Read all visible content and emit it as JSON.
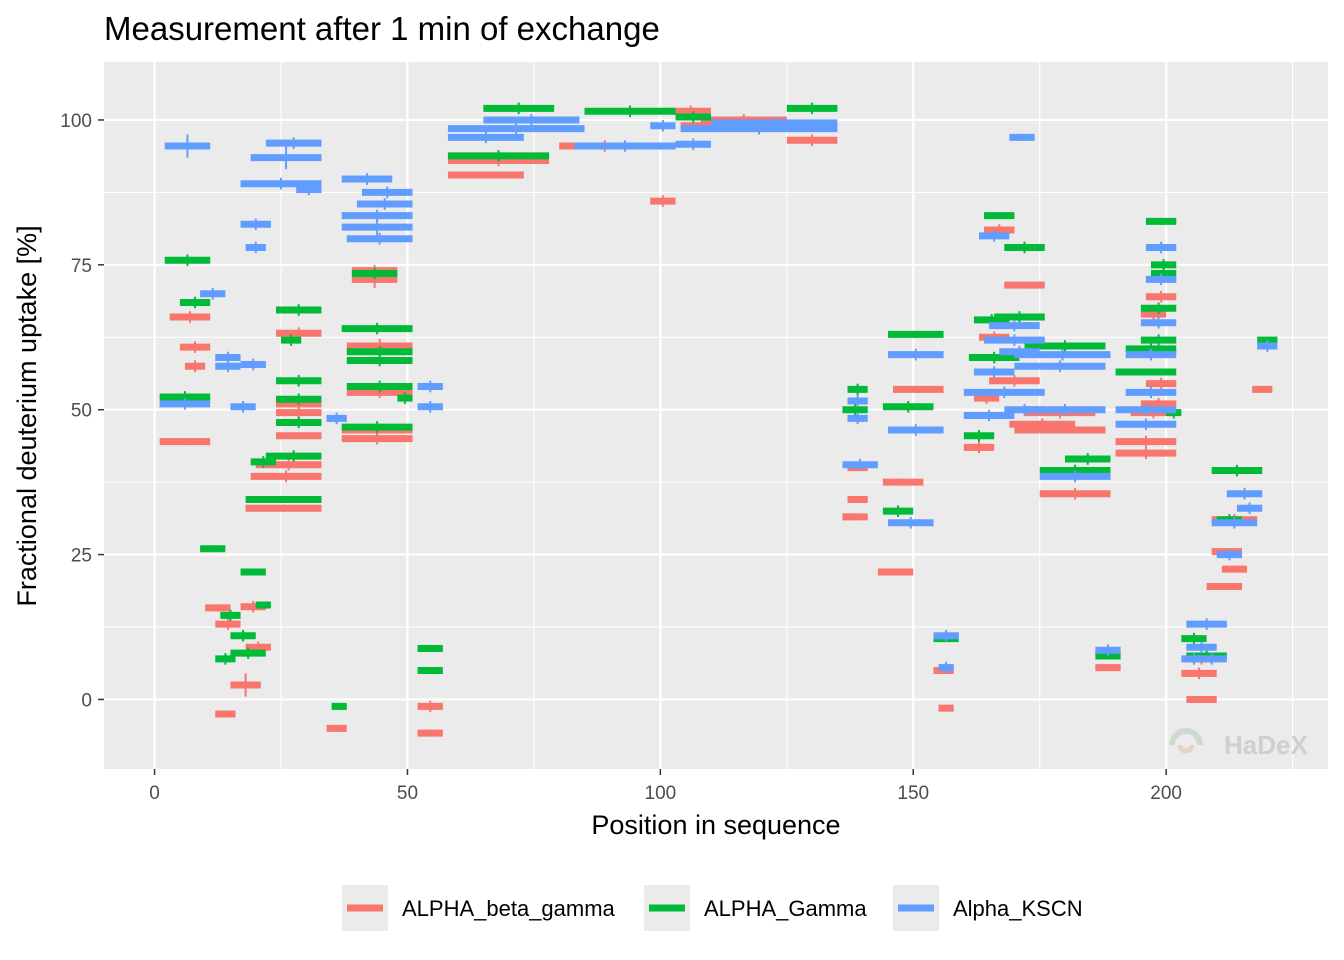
{
  "chart_data": {
    "type": "scatter",
    "title": "Measurement after 1 min of exchange",
    "xlabel": "Position in sequence",
    "ylabel": "Fractional deuterium uptake [%]",
    "xlim": [
      -10,
      232
    ],
    "ylim": [
      -12,
      110
    ],
    "x_ticks": [
      0,
      50,
      100,
      150,
      200
    ],
    "y_ticks": [
      0,
      25,
      50,
      75,
      100
    ],
    "grid": true,
    "legend_position": "bottom",
    "watermark": "HaDeX",
    "series": [
      {
        "name": "ALPHA_beta_gamma",
        "color": "#F8766D",
        "points": [
          [
            1,
            11,
            44.5,
            0.6
          ],
          [
            3,
            11,
            66,
            1
          ],
          [
            5,
            11,
            60.8,
            1
          ],
          [
            6,
            10,
            57.5,
            1
          ],
          [
            10,
            15,
            15.8,
            0.6
          ],
          [
            12,
            17,
            13,
            1
          ],
          [
            12,
            16,
            -2.5,
            0.6
          ],
          [
            15,
            21,
            2.5,
            2
          ],
          [
            17,
            22,
            16,
            1
          ],
          [
            18,
            23,
            9,
            1
          ],
          [
            18,
            33,
            33,
            0.6
          ],
          [
            19,
            33,
            38.5,
            1
          ],
          [
            20,
            33,
            40.5,
            1
          ],
          [
            24,
            33,
            45.5,
            0.6
          ],
          [
            24,
            33,
            49.5,
            1
          ],
          [
            24,
            33,
            51,
            1
          ],
          [
            24,
            33,
            63.2,
            1
          ],
          [
            34,
            38,
            -5,
            0.6
          ],
          [
            37,
            51,
            45,
            1
          ],
          [
            37,
            51,
            46.5,
            1
          ],
          [
            38,
            51,
            53,
            1
          ],
          [
            38,
            51,
            61,
            1.2
          ],
          [
            39,
            48,
            72.5,
            1.5
          ],
          [
            39,
            48,
            74,
            1
          ],
          [
            52,
            57,
            -1.2,
            1
          ],
          [
            52,
            57,
            -5.8,
            0.6
          ],
          [
            58,
            73,
            90.5,
            0.6
          ],
          [
            58,
            78,
            93,
            1
          ],
          [
            80,
            98,
            95.5,
            1
          ],
          [
            98,
            103,
            86,
            1
          ],
          [
            102,
            110,
            101.5,
            1
          ],
          [
            104,
            128,
            99,
            1
          ],
          [
            108,
            125,
            100,
            1
          ],
          [
            125,
            135,
            96.5,
            1
          ],
          [
            136,
            141,
            31.5,
            0.6
          ],
          [
            137,
            141,
            34.5,
            0.6
          ],
          [
            137,
            141,
            40,
            0.6
          ],
          [
            143,
            150,
            22,
            0.6
          ],
          [
            144,
            152,
            37.5,
            0.6
          ],
          [
            146,
            156,
            53.5,
            0.6
          ],
          [
            154,
            158,
            5,
            0.6
          ],
          [
            155,
            158,
            -1.5,
            0.6
          ],
          [
            160,
            166,
            43.5,
            1
          ],
          [
            162,
            167,
            52,
            1
          ],
          [
            163,
            169,
            62.5,
            1
          ],
          [
            164,
            170,
            81,
            1
          ],
          [
            165,
            175,
            55,
            1
          ],
          [
            168,
            176,
            71.5,
            0.6
          ],
          [
            169,
            182,
            47.5,
            1
          ],
          [
            170,
            188,
            46.5,
            0.6
          ],
          [
            172,
            186,
            49.5,
            1
          ],
          [
            175,
            189,
            35.5,
            1
          ],
          [
            186,
            191,
            5.5,
            0.6
          ],
          [
            190,
            202,
            42.5,
            1
          ],
          [
            190,
            202,
            44.5,
            1
          ],
          [
            193,
            202,
            49.5,
            1
          ],
          [
            195,
            202,
            51,
            1
          ],
          [
            195,
            200,
            66.5,
            1
          ],
          [
            196,
            202,
            69.5,
            1
          ],
          [
            196,
            202,
            54.5,
            1
          ],
          [
            204,
            210,
            0,
            0.6
          ],
          [
            203,
            210,
            4.5,
            1
          ],
          [
            204,
            210,
            7,
            1
          ],
          [
            208,
            215,
            19.5,
            0.6
          ],
          [
            209,
            218,
            31,
            1
          ],
          [
            209,
            215,
            25.5,
            0.6
          ],
          [
            211,
            216,
            22.5,
            0.6
          ],
          [
            217,
            221,
            53.5,
            0.6
          ]
        ]
      },
      {
        "name": "ALPHA_Gamma",
        "color": "#00BA38",
        "points": [
          [
            1,
            11,
            52.2,
            1
          ],
          [
            2,
            11,
            75.8,
            1
          ],
          [
            5,
            11,
            68.5,
            1
          ],
          [
            9,
            14,
            26,
            0.6
          ],
          [
            12,
            16,
            7,
            1
          ],
          [
            13,
            17,
            14.5,
            1
          ],
          [
            15,
            20,
            11,
            1
          ],
          [
            15,
            22,
            8,
            1
          ],
          [
            17,
            22,
            22,
            0.6
          ],
          [
            20,
            23,
            16.3,
            0.6
          ],
          [
            19,
            24,
            41,
            1
          ],
          [
            22,
            33,
            42,
            1
          ],
          [
            18,
            33,
            34.5,
            0.6
          ],
          [
            24,
            33,
            47.8,
            1
          ],
          [
            24,
            33,
            51.8,
            1
          ],
          [
            24,
            33,
            55,
            1
          ],
          [
            24,
            33,
            67.2,
            1
          ],
          [
            25,
            29,
            62,
            1
          ],
          [
            35,
            38,
            -1.2,
            0.6
          ],
          [
            37,
            51,
            47,
            1
          ],
          [
            37,
            51,
            64,
            1
          ],
          [
            38,
            51,
            58.5,
            1
          ],
          [
            38,
            51,
            60,
            1
          ],
          [
            39,
            48,
            73.5,
            1
          ],
          [
            38,
            51,
            54,
            1
          ],
          [
            48,
            51,
            52,
            1
          ],
          [
            52,
            57,
            8.8,
            0.6
          ],
          [
            52,
            57,
            5,
            0.6
          ],
          [
            58,
            78,
            93.8,
            1
          ],
          [
            65,
            79,
            102,
            1
          ],
          [
            85,
            103,
            101.5,
            1
          ],
          [
            103,
            110,
            100.5,
            1
          ],
          [
            125,
            135,
            102,
            1
          ],
          [
            136,
            141,
            50,
            1
          ],
          [
            137,
            141,
            53.5,
            1
          ],
          [
            144,
            150,
            32.5,
            1
          ],
          [
            144,
            154,
            50.5,
            1
          ],
          [
            145,
            156,
            63,
            0.6
          ],
          [
            154,
            159,
            10.5,
            0.6
          ],
          [
            160,
            166,
            45.5,
            1
          ],
          [
            161,
            171,
            59,
            1
          ],
          [
            162,
            169,
            65.5,
            1
          ],
          [
            164,
            170,
            83.5,
            0.6
          ],
          [
            166,
            176,
            66,
            1
          ],
          [
            168,
            176,
            78,
            1
          ],
          [
            172,
            188,
            61,
            1
          ],
          [
            175,
            189,
            39.5,
            1
          ],
          [
            180,
            189,
            41.5,
            1
          ],
          [
            186,
            191,
            7.5,
            0.6
          ],
          [
            190,
            202,
            56.5,
            0.6
          ],
          [
            192,
            202,
            60.5,
            1
          ],
          [
            195,
            202,
            62,
            1
          ],
          [
            195,
            202,
            67.5,
            1
          ],
          [
            197,
            202,
            73.5,
            1
          ],
          [
            197,
            202,
            75,
            1
          ],
          [
            196,
            202,
            82.5,
            0.6
          ],
          [
            200,
            203,
            49.5,
            1
          ],
          [
            203,
            208,
            10.5,
            1
          ],
          [
            204,
            212,
            7.5,
            1
          ],
          [
            209,
            219,
            39.5,
            1
          ],
          [
            210,
            215,
            31,
            1
          ],
          [
            218,
            222,
            62,
            0.6
          ]
        ]
      },
      {
        "name": "Alpha_KSCN",
        "color": "#619CFF",
        "points": [
          [
            1,
            11,
            51,
            1
          ],
          [
            2,
            11,
            95.5,
            2
          ],
          [
            9,
            14,
            70,
            1
          ],
          [
            12,
            17,
            57.5,
            1
          ],
          [
            12,
            17,
            59,
            1
          ],
          [
            15,
            20,
            50.5,
            1
          ],
          [
            17,
            22,
            57.8,
            1
          ],
          [
            17,
            23,
            82,
            1
          ],
          [
            18,
            22,
            78,
            1
          ],
          [
            17,
            33,
            89,
            1
          ],
          [
            19,
            33,
            93.5,
            2
          ],
          [
            22,
            33,
            96,
            1
          ],
          [
            28,
            33,
            88,
            1
          ],
          [
            34,
            38,
            48.5,
            1
          ],
          [
            37,
            47,
            89.8,
            1
          ],
          [
            37,
            51,
            81.5,
            2
          ],
          [
            37,
            51,
            83.5,
            1
          ],
          [
            38,
            51,
            79.5,
            1
          ],
          [
            40,
            51,
            85.5,
            1
          ],
          [
            41,
            51,
            87.5,
            1
          ],
          [
            52,
            57,
            54,
            1
          ],
          [
            52,
            57,
            50.5,
            1
          ],
          [
            58,
            73,
            97,
            1
          ],
          [
            58,
            85,
            98.5,
            1
          ],
          [
            65,
            84,
            100,
            1
          ],
          [
            83,
            103,
            95.5,
            1
          ],
          [
            98,
            103,
            99,
            1
          ],
          [
            103,
            110,
            95.8,
            1
          ],
          [
            104,
            135,
            98.5,
            1
          ],
          [
            110,
            135,
            99.5,
            1
          ],
          [
            136,
            143,
            40.5,
            1
          ],
          [
            137,
            141,
            48.5,
            1
          ],
          [
            137,
            141,
            51.5,
            1
          ],
          [
            145,
            154,
            30.5,
            1
          ],
          [
            145,
            156,
            46.5,
            1
          ],
          [
            145,
            156,
            59.5,
            1
          ],
          [
            154,
            159,
            11,
            1
          ],
          [
            155,
            158,
            5.5,
            1
          ],
          [
            160,
            170,
            49,
            1
          ],
          [
            160,
            176,
            53,
            1
          ],
          [
            162,
            170,
            56.5,
            1
          ],
          [
            163,
            169,
            80,
            1
          ],
          [
            164,
            176,
            62,
            1
          ],
          [
            165,
            175,
            64.5,
            1
          ],
          [
            167,
            175,
            60,
            1
          ],
          [
            168,
            176,
            50,
            1
          ],
          [
            169,
            174,
            97,
            0.6
          ],
          [
            170,
            188,
            57.5,
            1
          ],
          [
            170,
            189,
            59.5,
            1
          ],
          [
            172,
            188,
            50,
            1
          ],
          [
            175,
            189,
            38.5,
            1
          ],
          [
            186,
            191,
            8.5,
            1
          ],
          [
            190,
            202,
            47.5,
            1
          ],
          [
            190,
            202,
            50,
            1
          ],
          [
            192,
            202,
            53,
            1
          ],
          [
            192,
            202,
            59.5,
            1
          ],
          [
            195,
            202,
            65,
            1
          ],
          [
            196,
            202,
            72.5,
            1
          ],
          [
            196,
            202,
            78,
            1
          ],
          [
            203,
            208,
            7,
            1
          ],
          [
            204,
            210,
            9,
            1
          ],
          [
            204,
            212,
            13,
            1
          ],
          [
            206,
            212,
            7,
            1
          ],
          [
            209,
            218,
            30.5,
            1
          ],
          [
            210,
            215,
            25,
            1
          ],
          [
            212,
            219,
            35.5,
            1
          ],
          [
            214,
            219,
            33,
            1
          ],
          [
            218,
            222,
            61,
            1
          ]
        ]
      }
    ]
  }
}
